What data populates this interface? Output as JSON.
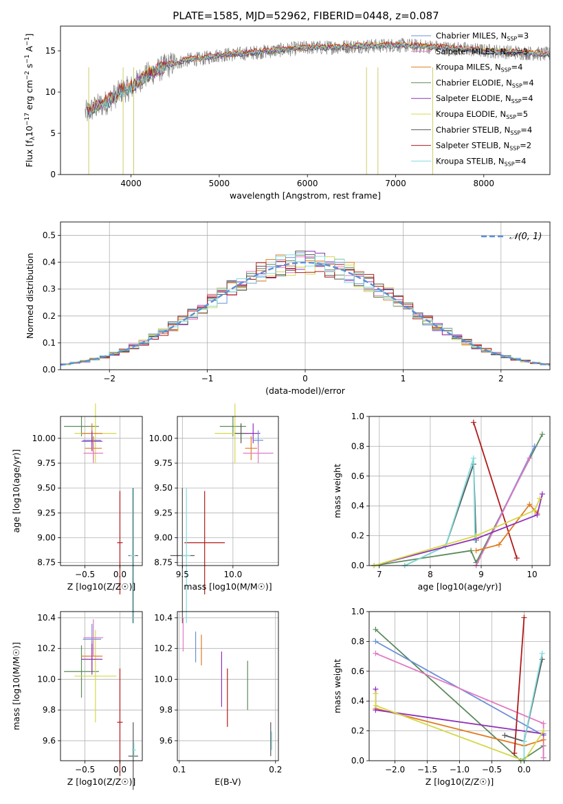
{
  "figure": {
    "title": "PLATE=1585, MJD=52962, FIBERID=0448, z=0.087",
    "legend_entries": [
      {
        "label": "Chabrier MILES, N$_{SSP}$=3",
        "text": "Chabrier MILES, N",
        "sub": "SSP",
        "suffix": "=3",
        "color": "#6a8fd8"
      },
      {
        "label": "Salpeter MILES, N$_{SSP}$=3",
        "text": "Salpeter MILES, N",
        "sub": "SSP",
        "suffix": "=3",
        "color": "#e377c2"
      },
      {
        "label": "Kroupa MILES, N$_{SSP}$=4",
        "text": "Kroupa MILES, N",
        "sub": "SSP",
        "suffix": "=4",
        "color": "#e07b20"
      },
      {
        "label": "Chabrier ELODIE, N$_{SSP}$=4",
        "text": "Chabrier ELODIE, N",
        "sub": "SSP",
        "suffix": "=4",
        "color": "#5a8a5a"
      },
      {
        "label": "Salpeter ELODIE, N$_{SSP}$=4",
        "text": "Salpeter ELODIE, N",
        "sub": "SSP",
        "suffix": "=4",
        "color": "#9030b8"
      },
      {
        "label": "Kroupa ELODIE, N$_{SSP}$=5",
        "text": "Kroupa ELODIE, N",
        "sub": "SSP",
        "suffix": "=5",
        "color": "#d4d84a"
      },
      {
        "label": "Chabrier STELIB, N$_{SSP}$=4",
        "text": "Chabrier STELIB, N",
        "sub": "SSP",
        "suffix": "=4",
        "color": "#555555"
      },
      {
        "label": "Salpeter STELIB, N$_{SSP}$=2",
        "text": "Salpeter STELIB, N",
        "sub": "SSP",
        "suffix": "=2",
        "color": "#b01818"
      },
      {
        "label": "Kroupa STELIB, N$_{SSP}$=4",
        "text": "Kroupa STELIB, N",
        "sub": "SSP",
        "suffix": "=4",
        "color": "#80dcdc"
      }
    ]
  },
  "chart_data": [
    {
      "type": "line",
      "title": "PLATE=1585, MJD=52962, FIBERID=0448, z=0.087",
      "xlabel": "wavelength [Angstrom, rest frame]",
      "ylabel_parts": [
        "Flux [f",
        "λ",
        "10",
        "−17",
        " erg cm",
        "−2",
        " s",
        "−1",
        " A",
        "−1",
        "]"
      ],
      "ylabel": "Flux [f_λ 10^-17 erg cm^-2 s^-1 A^-1]",
      "xlim": [
        3200,
        8750
      ],
      "ylim": [
        0,
        18
      ],
      "xticks": [
        4000,
        5000,
        6000,
        7000,
        8000
      ],
      "yticks": [
        0,
        5,
        10,
        15
      ],
      "grid": false,
      "legend_position": "right",
      "observed_flux": {
        "wavelength": [
          3500,
          3600,
          3700,
          3800,
          3900,
          4000,
          4100,
          4200,
          4300,
          4400,
          4500,
          4600,
          4700,
          4800,
          4900,
          5000,
          5200,
          5400,
          5600,
          5800,
          6000,
          6200,
          6400,
          6600,
          6800,
          7000,
          7200,
          7400,
          7600,
          7800,
          8000,
          8200,
          8400,
          8700
        ],
        "flux": [
          7.5,
          8.2,
          8.6,
          9.4,
          10.2,
          10.5,
          11.5,
          12.2,
          12.6,
          13.2,
          13.5,
          13.8,
          14.0,
          14.0,
          14.3,
          14.5,
          14.6,
          14.8,
          15.0,
          15.2,
          15.4,
          15.4,
          15.5,
          15.6,
          15.6,
          15.7,
          15.6,
          15.5,
          15.3,
          15.2,
          15.0,
          14.9,
          14.8,
          14.6
        ]
      },
      "series": [
        {
          "name": "Chabrier MILES, N$_{SSP}$=3",
          "color": "#6a8fd8",
          "offset": 0.0
        },
        {
          "name": "Salpeter MILES, N$_{SSP}$=3",
          "color": "#e377c2",
          "offset": 0.1
        },
        {
          "name": "Kroupa MILES, N$_{SSP}$=4",
          "color": "#e07b20",
          "offset": -0.1
        },
        {
          "name": "Chabrier ELODIE, N$_{SSP}$=4",
          "color": "#5a8a5a",
          "offset": 0.05
        },
        {
          "name": "Salpeter ELODIE, N$_{SSP}$=4",
          "color": "#9030b8",
          "offset": -0.05
        },
        {
          "name": "Kroupa ELODIE, N$_{SSP}$=5",
          "color": "#d4d84a",
          "offset": 0.15
        },
        {
          "name": "Chabrier STELIB, N$_{SSP}$=4",
          "color": "#555555",
          "offset": -0.15
        },
        {
          "name": "Salpeter STELIB, N$_{SSP}$=2",
          "color": "#b01818",
          "offset": 0.2
        },
        {
          "name": "Kroupa STELIB, N$_{SSP}$=4",
          "color": "#80dcdc",
          "offset": -0.02
        }
      ]
    },
    {
      "type": "histogram",
      "xlabel": "(data-model)/error",
      "ylabel": "Normed distribution",
      "xlim": [
        -2.5,
        2.5
      ],
      "ylim": [
        0,
        0.55
      ],
      "xticks": [
        -2,
        -1,
        0,
        1,
        2
      ],
      "yticks": [
        0.0,
        0.1,
        0.2,
        0.3,
        0.4,
        0.5
      ],
      "grid": true,
      "legend": {
        "label": "$\\mathcal{N}(0,1)$",
        "text": "𝒩(0, 1)",
        "position": "top-right",
        "color": "#5b8fd6",
        "style": "dashed"
      },
      "bin_width": 0.1,
      "bin_start": -2.5,
      "series_color_order": [
        "#6a8fd8",
        "#e377c2",
        "#e07b20",
        "#5a8a5a",
        "#9030b8",
        "#d4d84a",
        "#555555",
        "#b01818",
        "#80dcdc"
      ]
    },
    {
      "type": "errorbar",
      "xlabel": "Z [log10(Z/Z☉)]",
      "ylabel": "age  [log10(age/yr)]",
      "xlim": [
        -0.85,
        0.32
      ],
      "ylim": [
        8.72,
        10.22
      ],
      "xticks": [
        -0.5,
        0.0
      ],
      "yticks": [
        8.75,
        9.0,
        9.25,
        9.5,
        9.75,
        10.0
      ],
      "grid": true,
      "points": [
        {
          "color": "#5a8a5a",
          "x": -0.55,
          "xerr": 0.25,
          "y": 10.12,
          "yerr": 0.1
        },
        {
          "color": "#d4d84a",
          "x": -0.35,
          "xerr": 0.3,
          "y": 10.05,
          "yerr": 0.3
        },
        {
          "color": "#e07b20",
          "x": -0.4,
          "xerr": 0.15,
          "y": 10.05,
          "yerr": 0.1
        },
        {
          "color": "#6a8fd8",
          "x": -0.4,
          "xerr": 0.13,
          "y": 9.98,
          "yerr": 0.1
        },
        {
          "color": "#9030b8",
          "x": -0.4,
          "xerr": 0.15,
          "y": 9.97,
          "yerr": 0.1
        },
        {
          "color": "#e07b20",
          "x": -0.38,
          "xerr": 0.12,
          "y": 9.9,
          "yerr": 0.12
        },
        {
          "color": "#e377c2",
          "x": -0.38,
          "xerr": 0.14,
          "y": 9.85,
          "yerr": 0.1
        },
        {
          "color": "#b01818",
          "x": 0.0,
          "xerr": 0.04,
          "y": 8.95,
          "yerr": 0.52
        },
        {
          "color": "#555555",
          "x": 0.19,
          "xerr": 0.07,
          "y": 8.82,
          "yerr": 0.68
        },
        {
          "color": "#80dcdc",
          "x": 0.18,
          "xerr": 0.04,
          "y": 8.82,
          "yerr": 0.68
        }
      ]
    },
    {
      "type": "errorbar",
      "xlabel": "mass [log10(M/M☉)]",
      "ylabel": "",
      "xlim": [
        9.45,
        10.45
      ],
      "ylim": [
        8.72,
        10.22
      ],
      "xticks": [
        9.5,
        10.0
      ],
      "yticks": [
        8.75,
        9.0,
        9.25,
        9.5,
        9.75,
        10.0
      ],
      "grid": true,
      "points": [
        {
          "color": "#5a8a5a",
          "x": 10.0,
          "xerr": 0.13,
          "y": 10.12,
          "yerr": 0.1
        },
        {
          "color": "#d4d84a",
          "x": 10.02,
          "xerr": 0.2,
          "y": 10.05,
          "yerr": 0.3
        },
        {
          "color": "#555555",
          "x": 10.08,
          "xerr": 0.06,
          "y": 10.05,
          "yerr": 0.1
        },
        {
          "color": "#9030b8",
          "x": 10.2,
          "xerr": 0.07,
          "y": 10.05,
          "yerr": 0.1
        },
        {
          "color": "#6a8fd8",
          "x": 10.25,
          "xerr": 0.05,
          "y": 9.98,
          "yerr": 0.1
        },
        {
          "color": "#e07b20",
          "x": 10.18,
          "xerr": 0.06,
          "y": 9.9,
          "yerr": 0.12
        },
        {
          "color": "#e377c2",
          "x": 10.25,
          "xerr": 0.15,
          "y": 9.85,
          "yerr": 0.1
        },
        {
          "color": "#b01818",
          "x": 9.72,
          "xerr": 0.2,
          "y": 8.95,
          "yerr": 0.52
        },
        {
          "color": "#555555",
          "x": 9.5,
          "xerr": 0.12,
          "y": 8.82,
          "yerr": 0.68
        },
        {
          "color": "#80dcdc",
          "x": 9.54,
          "xerr": 0.04,
          "y": 8.82,
          "yerr": 0.68
        }
      ]
    },
    {
      "type": "line",
      "xlabel": "age  [log10(age/yr)]",
      "ylabel": "mass weight",
      "xlim": [
        6.8,
        10.35
      ],
      "ylim": [
        0.0,
        1.0
      ],
      "xticks": [
        7,
        8,
        9,
        10
      ],
      "yticks": [
        0.0,
        0.2,
        0.4,
        0.6,
        0.8,
        1.0
      ],
      "grid": true,
      "series": [
        {
          "color": "#5a8a5a",
          "x": [
            6.9,
            8.8,
            8.9,
            10.2
          ],
          "y": [
            0.0,
            0.1,
            0.02,
            0.88
          ]
        },
        {
          "color": "#555555",
          "x": [
            7.5,
            8.3,
            8.85,
            8.9
          ],
          "y": [
            0.0,
            0.13,
            0.68,
            0.17
          ]
        },
        {
          "color": "#80dcdc",
          "x": [
            7.5,
            8.3,
            8.85,
            8.88
          ],
          "y": [
            0.0,
            0.13,
            0.72,
            0.17
          ]
        },
        {
          "color": "#b01818",
          "x": [
            8.85,
            9.7
          ],
          "y": [
            0.96,
            0.05
          ]
        },
        {
          "color": "#6a8fd8",
          "x": [
            8.9,
            10.05
          ],
          "y": [
            0.0,
            0.8
          ]
        },
        {
          "color": "#e377c2",
          "x": [
            8.9,
            9.95
          ],
          "y": [
            0.0,
            0.72
          ]
        },
        {
          "color": "#e07b20",
          "x": [
            8.9,
            9.35,
            9.95,
            10.1
          ],
          "y": [
            0.1,
            0.14,
            0.41,
            0.35
          ]
        },
        {
          "color": "#9030b8",
          "x": [
            6.9,
            8.9,
            10.1,
            10.2
          ],
          "y": [
            0.0,
            0.18,
            0.34,
            0.48
          ]
        },
        {
          "color": "#d4d84a",
          "x": [
            6.9,
            8.9,
            10.05,
            10.15
          ],
          "y": [
            0.0,
            0.2,
            0.37,
            0.45
          ]
        }
      ]
    },
    {
      "type": "errorbar",
      "xlabel": "Z [log10(Z/Z☉)]",
      "ylabel": "mass [log10(M/M☉)]",
      "xlim": [
        -0.85,
        0.32
      ],
      "ylim": [
        9.47,
        10.44
      ],
      "xticks": [
        -0.5,
        0.0
      ],
      "yticks": [
        9.6,
        9.8,
        10.0,
        10.2,
        10.4
      ],
      "grid": true,
      "points": [
        {
          "color": "#5a8a5a",
          "x": -0.55,
          "xerr": 0.25,
          "y": 10.05,
          "yerr": 0.17
        },
        {
          "color": "#d4d84a",
          "x": -0.35,
          "xerr": 0.3,
          "y": 10.02,
          "yerr": 0.3
        },
        {
          "color": "#e07b20",
          "x": -0.4,
          "xerr": 0.15,
          "y": 10.15,
          "yerr": 0.1
        },
        {
          "color": "#6a8fd8",
          "x": -0.4,
          "xerr": 0.13,
          "y": 10.26,
          "yerr": 0.1
        },
        {
          "color": "#9030b8",
          "x": -0.4,
          "xerr": 0.15,
          "y": 10.13,
          "yerr": 0.1
        },
        {
          "color": "#e377c2",
          "x": -0.38,
          "xerr": 0.14,
          "y": 10.27,
          "yerr": 0.12
        },
        {
          "color": "#b01818",
          "x": 0.0,
          "xerr": 0.04,
          "y": 9.72,
          "yerr": 0.35
        },
        {
          "color": "#555555",
          "x": 0.19,
          "xerr": 0.07,
          "y": 9.5,
          "yerr": 0.22
        },
        {
          "color": "#80dcdc",
          "x": 0.2,
          "xerr": 0.03,
          "y": 9.54,
          "yerr": 0.05
        }
      ]
    },
    {
      "type": "errorbar",
      "xlabel": "E(B-V)",
      "ylabel": "",
      "xlim": [
        0.098,
        0.203
      ],
      "ylim": [
        9.47,
        10.44
      ],
      "xticks": [
        0.1,
        0.2
      ],
      "yticks": [
        9.6,
        9.8,
        10.0,
        10.2,
        10.4
      ],
      "grid": true,
      "points": [
        {
          "color": "#e377c2",
          "x": 0.104,
          "xerr": 0.0,
          "y": 10.29,
          "yerr": 0.11
        },
        {
          "color": "#6a8fd8",
          "x": 0.117,
          "xerr": 0.0,
          "y": 10.21,
          "yerr": 0.1
        },
        {
          "color": "#e07b20",
          "x": 0.123,
          "xerr": 0.0,
          "y": 10.19,
          "yerr": 0.1
        },
        {
          "color": "#9030b8",
          "x": 0.144,
          "xerr": 0.0,
          "y": 10.0,
          "yerr": 0.18
        },
        {
          "color": "#b01818",
          "x": 0.15,
          "xerr": 0.0,
          "y": 9.88,
          "yerr": 0.19
        },
        {
          "color": "#5a8a5a",
          "x": 0.171,
          "xerr": 0.0,
          "y": 9.96,
          "yerr": 0.16
        },
        {
          "color": "#555555",
          "x": 0.195,
          "xerr": 0.0,
          "y": 9.61,
          "yerr": 0.11
        },
        {
          "color": "#80dcdc",
          "x": 0.196,
          "xerr": 0.0,
          "y": 9.6,
          "yerr": 0.06
        }
      ]
    },
    {
      "type": "line",
      "xlabel": "Z [log10(Z/Z☉)]",
      "ylabel": "mass weight",
      "xlim": [
        -2.4,
        0.4
      ],
      "ylim": [
        0.0,
        1.0
      ],
      "xticks": [
        -2.0,
        -1.5,
        -1.0,
        -0.5,
        0.0
      ],
      "yticks": [
        0.0,
        0.2,
        0.4,
        0.6,
        0.8,
        1.0
      ],
      "grid": true,
      "series": [
        {
          "color": "#5a8a5a",
          "x": [
            -2.3,
            -0.05,
            0.3,
            0.3
          ],
          "y": [
            0.88,
            0.0,
            0.1,
            0.02
          ]
        },
        {
          "color": "#6a8fd8",
          "x": [
            -2.3,
            0.3
          ],
          "y": [
            0.8,
            0.17
          ]
        },
        {
          "color": "#e377c2",
          "x": [
            -2.3,
            0.3,
            0.3
          ],
          "y": [
            0.72,
            0.25,
            0.02
          ]
        },
        {
          "color": "#e07b20",
          "x": [
            -2.3,
            0.0,
            0.3
          ],
          "y": [
            0.35,
            0.1,
            0.14
          ]
        },
        {
          "color": "#9030b8",
          "x": [
            -2.3,
            -2.3,
            0.3
          ],
          "y": [
            0.48,
            0.34,
            0.18
          ]
        },
        {
          "color": "#d4d84a",
          "x": [
            -2.3,
            -2.3,
            0.0,
            0.3
          ],
          "y": [
            0.45,
            0.37,
            0.0,
            0.2
          ]
        },
        {
          "color": "#b01818",
          "x": [
            -0.15,
            0.0
          ],
          "y": [
            0.05,
            0.96
          ]
        },
        {
          "color": "#555555",
          "x": [
            -0.3,
            0.0,
            0.28
          ],
          "y": [
            0.17,
            0.13,
            0.68
          ]
        },
        {
          "color": "#80dcdc",
          "x": [
            0.0,
            0.0,
            0.28
          ],
          "y": [
            0.0,
            0.13,
            0.72
          ]
        }
      ]
    }
  ]
}
